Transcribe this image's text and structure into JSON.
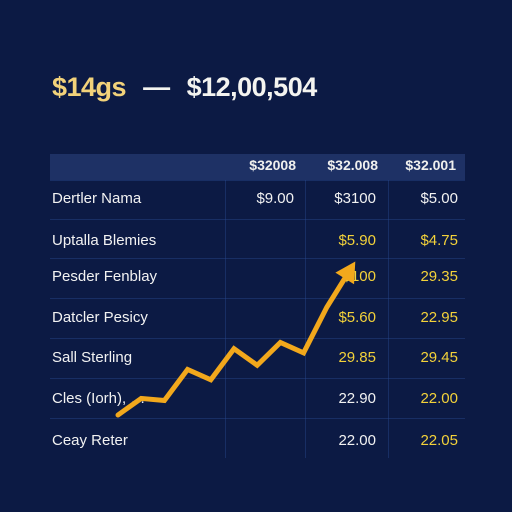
{
  "headline": {
    "left": "$14gs",
    "dash": "—",
    "right": "$12,00,504"
  },
  "table": {
    "columns": [
      "$32008",
      "$32.008",
      "$32.001"
    ],
    "rows": [
      {
        "label": "Dertler Nama",
        "values": [
          "$9.00",
          "$3100",
          "$5.00"
        ],
        "colors": [
          "white",
          "white",
          "white"
        ]
      },
      {
        "label": "Uptalla Blemies",
        "values": [
          "",
          "$5.90",
          "$4.75"
        ],
        "colors": [
          "white",
          "yellow",
          "yellow"
        ]
      },
      {
        "label": "Pesder Fenblay",
        "values": [
          "",
          "$100",
          "29.35"
        ],
        "colors": [
          "white",
          "yellow",
          "yellow"
        ]
      },
      {
        "label": "Datcler Pesicy",
        "values": [
          "",
          "$5.60",
          "22.95"
        ],
        "colors": [
          "white",
          "yellow",
          "yellow"
        ]
      },
      {
        "label": "Sall Sterling",
        "values": [
          "",
          "29.85",
          "29.45"
        ],
        "colors": [
          "white",
          "yellow",
          "yellow"
        ]
      },
      {
        "label": "Cles (Iorh), …",
        "values": [
          "",
          "22.90",
          "22.00"
        ],
        "colors": [
          "white",
          "white",
          "yellow"
        ]
      },
      {
        "label": "Ceay Reter",
        "values": [
          "",
          "22.00",
          "22.05"
        ],
        "colors": [
          "white",
          "white",
          "yellow"
        ]
      }
    ]
  },
  "colors": {
    "background": "#0c1a44",
    "header_band": "#1e3165",
    "accent_yellow": "#f3d23a",
    "arrow_orange": "#f2a81c"
  },
  "chart_data": {
    "type": "line",
    "series": [
      {
        "values": [
          0,
          8,
          7,
          22,
          17,
          32,
          24,
          35,
          30,
          52,
          70
        ]
      }
    ],
    "xlabel": "",
    "ylabel": "",
    "grid": false,
    "direction": "up-right arrow"
  }
}
